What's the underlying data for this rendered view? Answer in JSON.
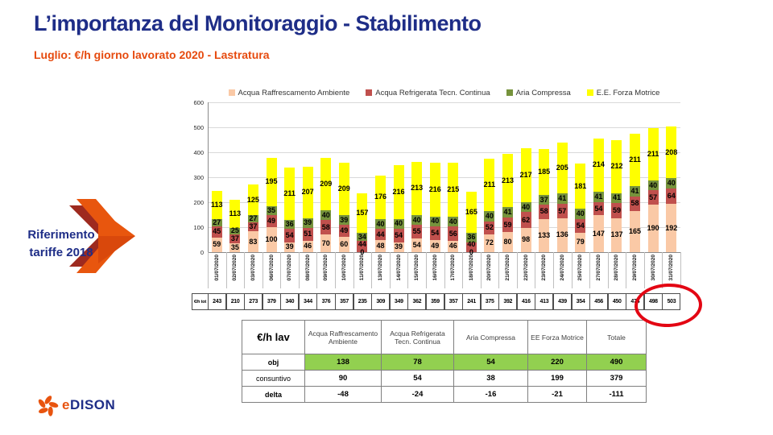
{
  "slide": {
    "title": "L’importanza del Monitoraggio - Stabilimento",
    "subtitle": "Luglio: €/h giorno lavorato 2020 - Lastratura"
  },
  "callout": {
    "line1": "Riferimento",
    "line2": "tariffe 2018"
  },
  "logo": {
    "e": "e",
    "rest": "DISON"
  },
  "colors": {
    "accent_navy": "#1E2D87",
    "accent_orange": "#E64A0E",
    "highlight_red": "#E30613",
    "obj_green": "#92D050"
  },
  "chart_data": {
    "type": "bar",
    "stacked": true,
    "title": "",
    "xlabel": "",
    "ylabel": "",
    "ylim": [
      0,
      600
    ],
    "yticks": [
      0,
      100,
      200,
      300,
      400,
      500,
      600
    ],
    "grid": true,
    "legend_position": "top",
    "categories": [
      "01/07/2020",
      "02/07/2020",
      "03/07/2020",
      "06/07/2020",
      "07/07/2020",
      "08/07/2020",
      "09/07/2020",
      "10/07/2020",
      "11/07/2020",
      "13/07/2020",
      "14/07/2020",
      "15/07/2020",
      "16/07/2020",
      "17/07/2020",
      "18/07/2020",
      "20/07/2020",
      "21/07/2020",
      "22/07/2020",
      "23/07/2020",
      "24/07/2020",
      "25/07/2020",
      "27/07/2020",
      "28/07/2020",
      "29/07/2020",
      "30/07/2020",
      "31/07/2020"
    ],
    "series": [
      {
        "name": "Acqua Raffrescamento Ambiente",
        "color": "#FAC9A6",
        "values": [
          59,
          35,
          83,
          100,
          39,
          46,
          70,
          60,
          0,
          48,
          39,
          54,
          49,
          46,
          0,
          72,
          80,
          98,
          133,
          136,
          79,
          147,
          137,
          165,
          190,
          192
        ]
      },
      {
        "name": "Acqua Refrigerata Tecn. Continua",
        "color": "#C0504D",
        "values": [
          45,
          37,
          37,
          49,
          54,
          51,
          58,
          49,
          44,
          44,
          54,
          55,
          54,
          56,
          40,
          52,
          59,
          62,
          58,
          57,
          54,
          54,
          59,
          58,
          57,
          64
        ]
      },
      {
        "name": "Aria Compressa",
        "color": "#76933C",
        "values": [
          27,
          25,
          27,
          35,
          36,
          39,
          40,
          39,
          34,
          40,
          40,
          40,
          40,
          40,
          36,
          40,
          41,
          40,
          37,
          41,
          40,
          41,
          41,
          41,
          40,
          40
        ]
      },
      {
        "name": "E.E. Forza Motrice",
        "color": "#FFFF00",
        "values": [
          113,
          113,
          125,
          195,
          211,
          207,
          209,
          209,
          157,
          176,
          216,
          213,
          216,
          215,
          165,
          211,
          213,
          217,
          185,
          205,
          181,
          214,
          212,
          211,
          211,
          208
        ]
      }
    ],
    "totals_label": "€/h tot",
    "totals": [
      243,
      210,
      273,
      379,
      340,
      344,
      376,
      357,
      235,
      309,
      349,
      362,
      359,
      357,
      241,
      375,
      392,
      416,
      413,
      439,
      354,
      456,
      450,
      474,
      498,
      503
    ]
  },
  "table": {
    "corner": "€/h  lav",
    "columns": [
      "Acqua Raffrescamento Ambiente",
      "Acqua Refrigerata Tecn. Continua",
      "Aria Compressa",
      "EE Forza Motrice",
      "Totale"
    ],
    "rows": [
      {
        "label": "obj",
        "values": [
          138,
          78,
          54,
          220,
          490
        ],
        "highlight": true
      },
      {
        "label": "consuntivo",
        "values": [
          90,
          54,
          38,
          199,
          379
        ],
        "highlight": false
      },
      {
        "label": "delta",
        "values": [
          -48,
          -24,
          -16,
          -21,
          -111
        ],
        "highlight": false
      }
    ]
  }
}
